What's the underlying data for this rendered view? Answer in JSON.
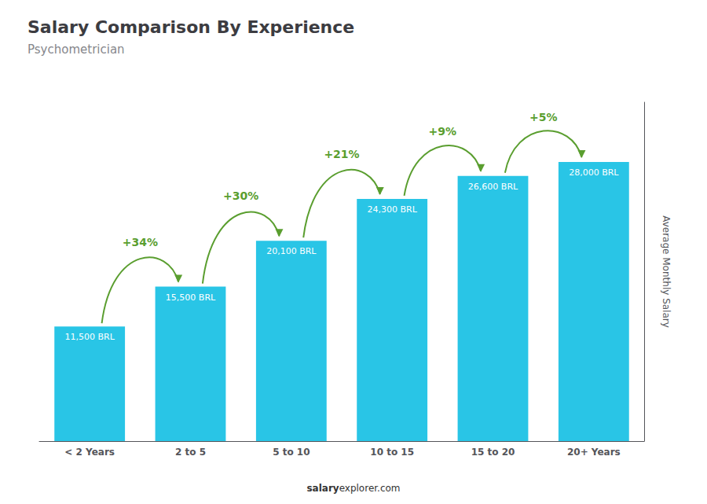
{
  "chart_data": {
    "type": "bar",
    "title": "Salary Comparison By Experience",
    "subtitle": "Psychometrician",
    "categories": [
      "< 2 Years",
      "2 to 5",
      "5 to 10",
      "10 to 15",
      "15 to 20",
      "20+ Years"
    ],
    "values": [
      11500,
      15500,
      20100,
      24300,
      26600,
      28000
    ],
    "value_labels": [
      "11,500 BRL",
      "15,500 BRL",
      "20,100 BRL",
      "24,300 BRL",
      "26,600 BRL",
      "28,000 BRL"
    ],
    "data_labels": true,
    "color": "#29c5e6",
    "ylabel": "Average Monthly Salary",
    "ylim": [
      0,
      34000
    ],
    "tick_labels": "x",
    "grid": false,
    "annotations": [
      "+34%",
      "+30%",
      "+21%",
      "+9%",
      "+5%"
    ],
    "footer": [
      "salary",
      "explorer.com"
    ]
  }
}
